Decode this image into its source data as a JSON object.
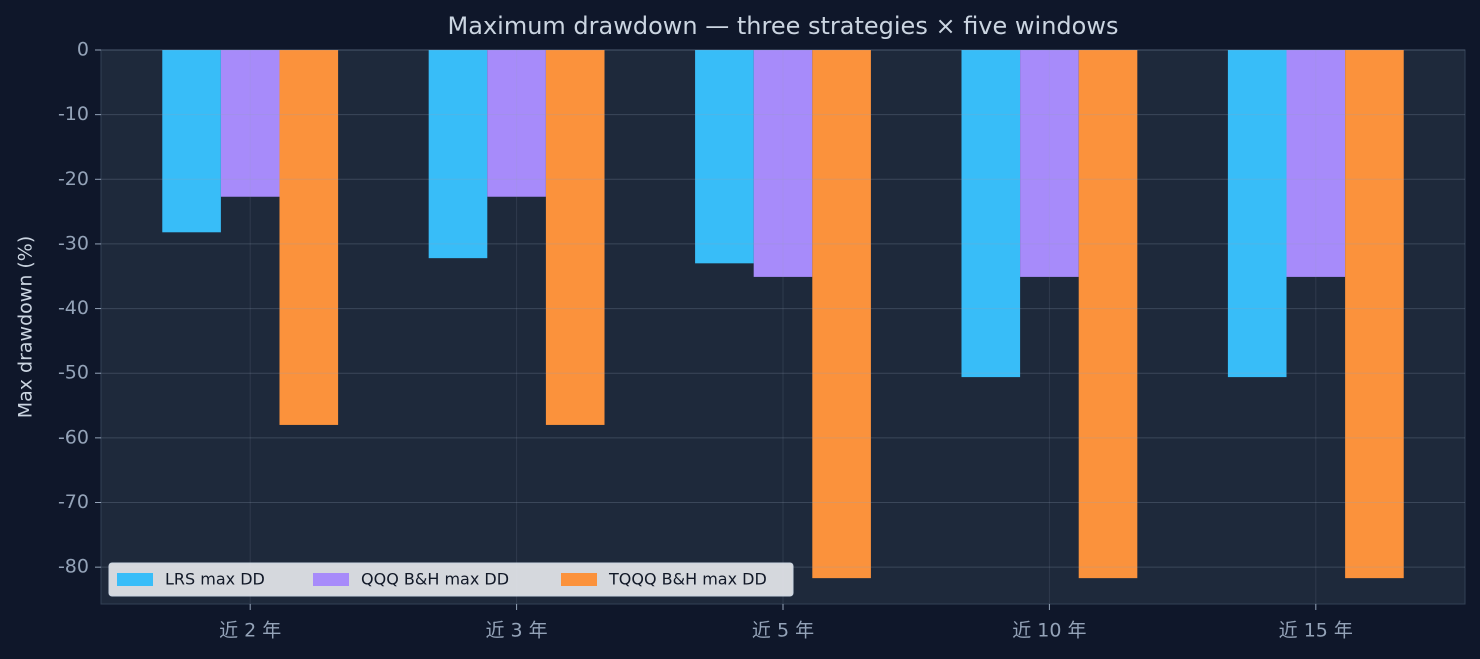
{
  "chart_data": {
    "type": "bar",
    "title": "Maximum drawdown — three strategies × five windows",
    "y_label": "Max drawdown (%)",
    "categories": [
      "近 2 年",
      "近 3 年",
      "近 5 年",
      "近 10 年",
      "近 15 年"
    ],
    "series": [
      {
        "name": "LRS max DD",
        "color": "#38bdf8",
        "values": [
          -28.2,
          -32.2,
          -33.0,
          -50.6,
          -50.6
        ]
      },
      {
        "name": "QQQ B&H max DD",
        "color": "#a78bfa",
        "values": [
          -22.7,
          -22.7,
          -35.1,
          -35.1,
          -35.1
        ]
      },
      {
        "name": "TQQQ B&H max DD",
        "color": "#fb923c",
        "values": [
          -58.0,
          -58.0,
          -81.7,
          -81.7,
          -81.7
        ]
      }
    ],
    "ylim": [
      -85.7,
      0
    ],
    "yticks": [
      0,
      -10,
      -20,
      -30,
      -40,
      -50,
      -60,
      -70,
      -80
    ],
    "grid": true,
    "legend": "lower left"
  }
}
